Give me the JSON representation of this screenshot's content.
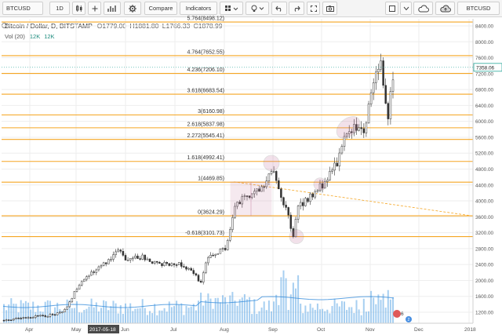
{
  "toolbar": {
    "symbol": "BTCUSD",
    "interval": "1D",
    "compare_label": "Compare",
    "indicators_label": "Indicators",
    "right_symbol": "BTCUSD"
  },
  "legend": {
    "title": "Bitcoin / Dollar, D, BITSTAMP",
    "open": "O1779.00",
    "high": "H1881.80",
    "low": "L1766.33",
    "close": "C1878.99",
    "vol_label": "Vol (20)",
    "vol_val1": "12K",
    "vol_val2": "12K"
  },
  "price_axis": {
    "ticks": [
      "8400.00",
      "8000.00",
      "7600.00",
      "7200.00",
      "6800.00",
      "6400.00",
      "6000.00",
      "5600.00",
      "5200.00",
      "4800.00",
      "4400.00",
      "4000.00",
      "3600.00",
      "3200.00",
      "2800.00",
      "2400.00",
      "2000.00",
      "1600.00",
      "1200.00"
    ],
    "current_price": "7358.06"
  },
  "time_axis": {
    "labels": [
      "Apr",
      "May",
      "Jun",
      "Jul",
      "Aug",
      "Sep",
      "Oct",
      "Nov",
      "Dec",
      "2018"
    ],
    "selected_date": "2017-05-18"
  },
  "fib_levels": [
    {
      "label": "5.764(8498.12)",
      "price": 8498.12
    },
    {
      "label": "4.764(7652.55)",
      "price": 7652.55
    },
    {
      "label": "4.236(7206.10)",
      "price": 7206.1
    },
    {
      "label": "3.618(6683.54)",
      "price": 6683.54
    },
    {
      "label": "3(6160.98)",
      "price": 6160.98
    },
    {
      "label": "2.618(5837.98)",
      "price": 5837.98
    },
    {
      "label": "2.272(5545.41)",
      "price": 5545.41
    },
    {
      "label": "1.618(4992.41)",
      "price": 4992.41
    },
    {
      "label": "1(4469.85)",
      "price": 4469.85
    },
    {
      "label": "0(3624.29)",
      "price": 3624.29
    },
    {
      "label": "-0.618(3101.73)",
      "price": 3101.73
    }
  ],
  "colors": {
    "fib": "#f5a623",
    "up": "#26a69a",
    "down": "#ef5350",
    "candle": "#333333",
    "volume": "#5fa8e6",
    "annotation": "#c0709a"
  },
  "badge": {
    "count": "6",
    "sub": "2"
  },
  "chart_data": {
    "type": "candlestick",
    "x": [
      "2017-03-20",
      "2017-04-01",
      "2017-05-01",
      "2017-06-01",
      "2017-07-01",
      "2017-08-01",
      "2017-09-01",
      "2017-10-01",
      "2017-11-01",
      "2017-11-12"
    ],
    "anchors_close": [
      1000,
      1080,
      1800,
      2500,
      2450,
      2800,
      4700,
      4400,
      6700,
      7358
    ],
    "ylim": [
      900,
      8700
    ]
  }
}
